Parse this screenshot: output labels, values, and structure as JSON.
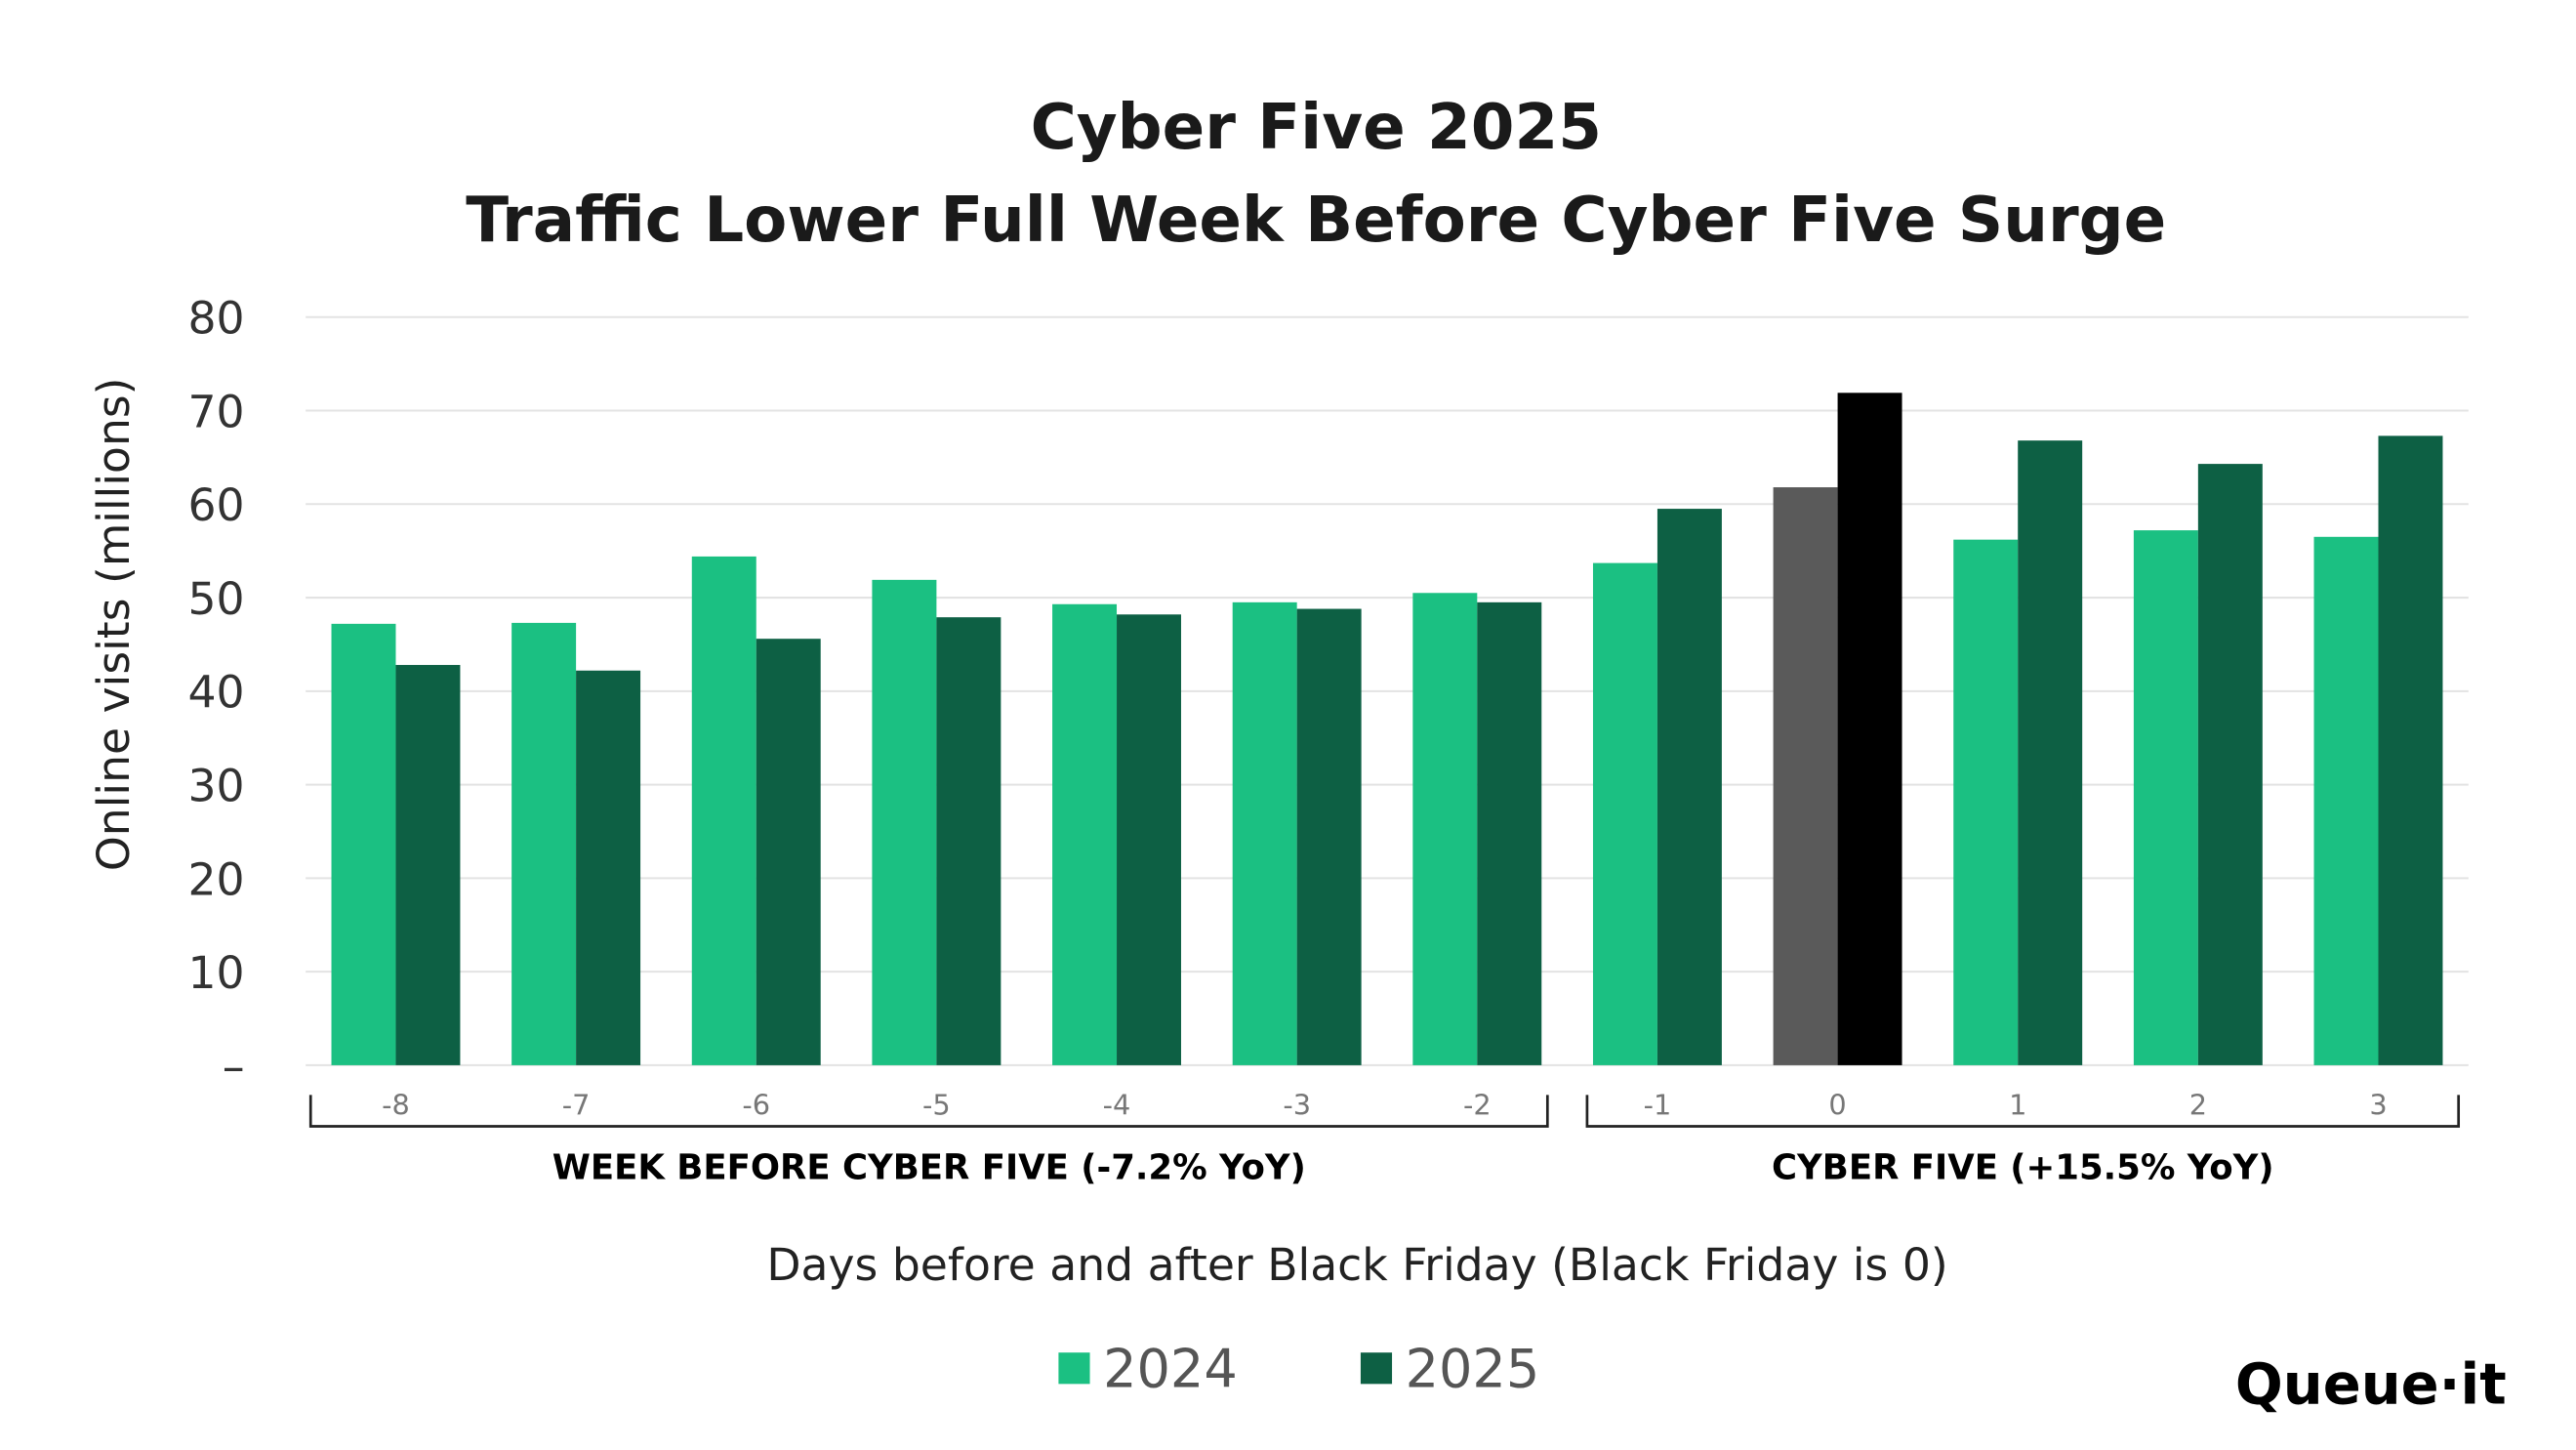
{
  "chart_data": {
    "type": "bar",
    "title": "Cyber Five 2025",
    "subtitle": "Traffic Lower Full Week Before Cyber Five Surge",
    "xlabel": "Days before and after Black Friday (Black Friday is 0)",
    "ylabel": "Online visits (millions)",
    "ylim": [
      0,
      80
    ],
    "yticks": [
      0,
      10,
      20,
      30,
      40,
      50,
      60,
      70,
      80
    ],
    "ytick_labels": [
      "–",
      "10",
      "20",
      "30",
      "40",
      "50",
      "60",
      "70",
      "80"
    ],
    "grid": true,
    "categories": [
      "-8",
      "-7",
      "-6",
      "-5",
      "-4",
      "-3",
      "-2",
      "-1",
      "0",
      "1",
      "2",
      "3"
    ],
    "series": [
      {
        "name": "2024",
        "color": "#1bc082",
        "values": [
          47.2,
          47.3,
          54.4,
          51.9,
          49.3,
          49.5,
          50.5,
          53.7,
          61.8,
          56.2,
          57.2,
          56.5
        ]
      },
      {
        "name": "2025",
        "color": "#0d6044",
        "values": [
          42.8,
          42.2,
          45.6,
          47.9,
          48.2,
          48.8,
          49.5,
          59.5,
          71.9,
          66.8,
          64.3,
          67.3
        ]
      }
    ],
    "highlight": {
      "category": "0",
      "colors": {
        "2024": "#5a5a5a",
        "2025": "#000000"
      }
    },
    "category_groups": [
      {
        "label": "WEEK BEFORE CYBER FIVE (-7.2% YoY)",
        "from": "-8",
        "to": "-2"
      },
      {
        "label": "CYBER FIVE (+15.5% YoY)",
        "from": "-1",
        "to": "3"
      }
    ],
    "legend_placement": "bottom"
  },
  "logo": "Queue·it"
}
